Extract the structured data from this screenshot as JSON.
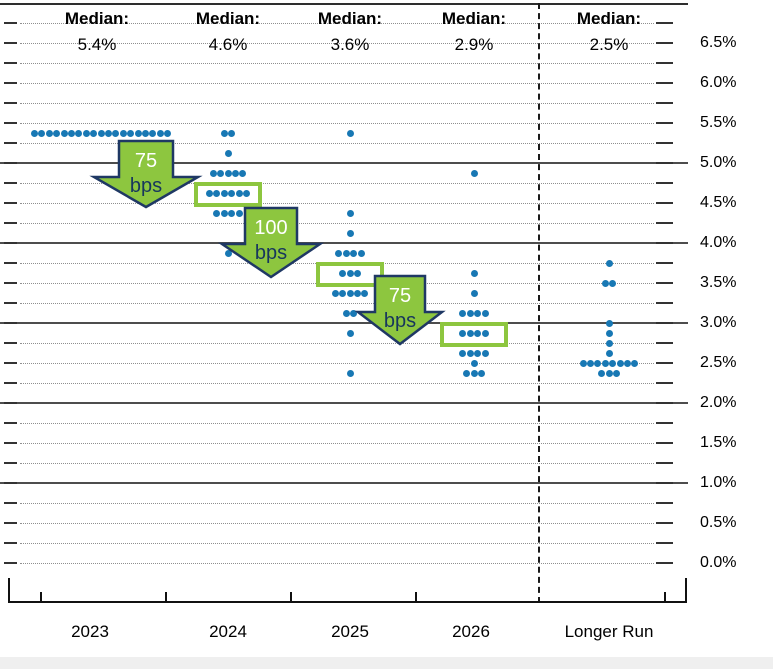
{
  "chart_data": {
    "type": "scatter",
    "subtype": "fomc-dot-plot",
    "title": "",
    "y_axis": {
      "unit": "%",
      "label_min": 0.0,
      "label_max": 6.5,
      "label_step": 0.5,
      "grid_step": 0.25,
      "tick_labels": [
        "6.5%",
        "6.0%",
        "5.5%",
        "5.0%",
        "4.5%",
        "4.0%",
        "3.5%",
        "3.0%",
        "2.5%",
        "2.0%",
        "1.5%",
        "1.0%",
        "0.5%",
        "0.0%"
      ],
      "solid_line_levels": [
        1.0,
        2.0,
        3.0,
        4.0,
        5.0
      ]
    },
    "columns": [
      {
        "label": "2023",
        "median_label": "Median:",
        "median_value": "5.4%",
        "dots": [
          {
            "rate": 5.375,
            "count": 19
          }
        ]
      },
      {
        "label": "2024",
        "median_label": "Median:",
        "median_value": "4.6%",
        "highlight_rate": 4.625,
        "dots": [
          {
            "rate": 5.375,
            "count": 2
          },
          {
            "rate": 5.125,
            "count": 1
          },
          {
            "rate": 4.875,
            "count": 5
          },
          {
            "rate": 4.625,
            "count": 6
          },
          {
            "rate": 4.375,
            "count": 4
          },
          {
            "rate": 3.875,
            "count": 1
          }
        ]
      },
      {
        "label": "2025",
        "median_label": "Median:",
        "median_value": "3.6%",
        "highlight_rate": 3.625,
        "dots": [
          {
            "rate": 5.375,
            "count": 1
          },
          {
            "rate": 4.375,
            "count": 1
          },
          {
            "rate": 4.125,
            "count": 1
          },
          {
            "rate": 3.875,
            "count": 4
          },
          {
            "rate": 3.625,
            "count": 3
          },
          {
            "rate": 3.375,
            "count": 5
          },
          {
            "rate": 3.125,
            "count": 2
          },
          {
            "rate": 2.875,
            "count": 1
          },
          {
            "rate": 2.375,
            "count": 1
          }
        ]
      },
      {
        "label": "2026",
        "median_label": "Median:",
        "median_value": "2.9%",
        "highlight_rate": 2.875,
        "dots": [
          {
            "rate": 4.875,
            "count": 1
          },
          {
            "rate": 3.625,
            "count": 1
          },
          {
            "rate": 3.375,
            "count": 1
          },
          {
            "rate": 3.125,
            "count": 4
          },
          {
            "rate": 2.875,
            "count": 4
          },
          {
            "rate": 2.625,
            "count": 4
          },
          {
            "rate": 2.5,
            "count": 1
          },
          {
            "rate": 2.375,
            "count": 3
          }
        ]
      },
      {
        "label": "Longer Run",
        "median_label": "Median:",
        "median_value": "2.5%",
        "dots": [
          {
            "rate": 3.75,
            "count": 1
          },
          {
            "rate": 3.5,
            "count": 2
          },
          {
            "rate": 3.0,
            "count": 1
          },
          {
            "rate": 2.875,
            "count": 1
          },
          {
            "rate": 2.75,
            "count": 1
          },
          {
            "rate": 2.625,
            "count": 1
          },
          {
            "rate": 2.5,
            "count": 8
          },
          {
            "rate": 2.375,
            "count": 3
          }
        ]
      }
    ],
    "arrows": [
      {
        "line1": "75",
        "line2": "bps",
        "meaning": "cut from 2023 median to 2024 median"
      },
      {
        "line1": "100",
        "line2": "bps",
        "meaning": "cut from 2024 median to 2025 median"
      },
      {
        "line1": "75",
        "line2": "bps",
        "meaning": "cut from 2025 median to 2026 median"
      }
    ],
    "legend_position": "none",
    "grid": true
  },
  "colors": {
    "dot_blue": "#1878b4",
    "arrow_green": "#8dc63f",
    "arrow_outline_navy": "#1f3864",
    "box_green": "#8dc63f",
    "gridline_gray": "#8f8f8f",
    "solid_line_gray": "#4d4d4d",
    "axis_black": "#111111"
  }
}
